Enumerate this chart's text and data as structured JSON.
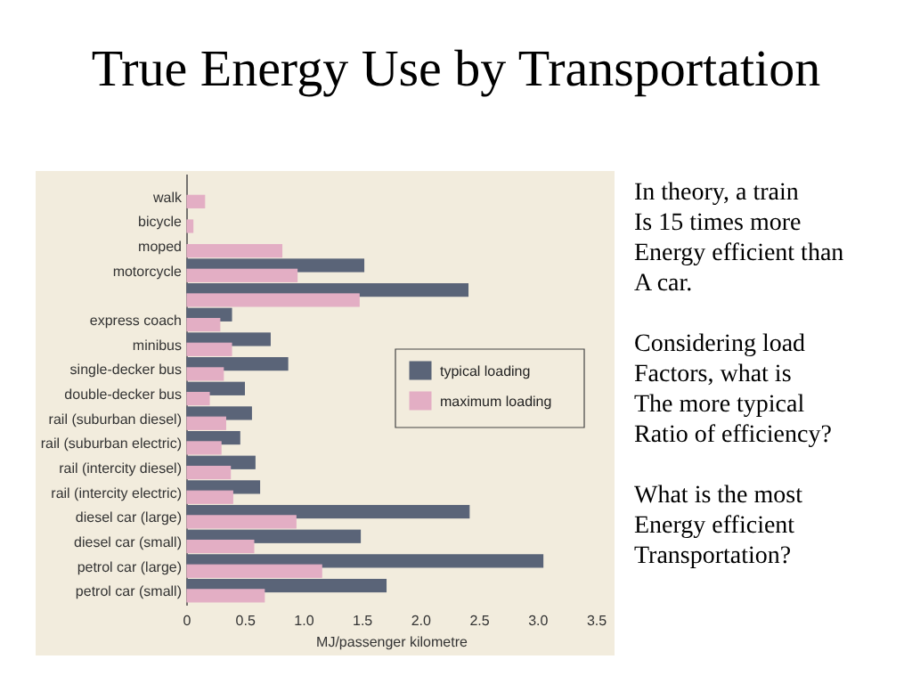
{
  "chart_data": {
    "type": "bar",
    "orientation": "horizontal",
    "title": "True Energy Use by Transportation",
    "xlabel": "MJ/passenger kilometre",
    "categories": [
      "walk",
      "bicycle",
      "moped",
      "motorcycle",
      null,
      "express coach",
      "minibus",
      "single-decker bus",
      "double-decker bus",
      "rail (suburban diesel)",
      "rail (suburban electric)",
      "rail (intercity diesel)",
      "rail (intercity electric)",
      "diesel car (large)",
      "diesel car (small)",
      "petrol car (large)",
      "petrol car (small)"
    ],
    "series": [
      {
        "name": "typical loading",
        "color": "#5a6478",
        "values": [
          null,
          null,
          null,
          1.51,
          2.4,
          0.38,
          0.71,
          0.86,
          0.49,
          0.55,
          0.45,
          0.58,
          0.62,
          2.41,
          1.48,
          3.04,
          1.7
        ]
      },
      {
        "name": "maximum loading",
        "color": "#e3aec4",
        "values": [
          0.15,
          0.05,
          0.81,
          0.94,
          1.47,
          0.28,
          0.38,
          0.31,
          0.19,
          0.33,
          0.29,
          0.37,
          0.39,
          0.93,
          0.57,
          1.15,
          0.66
        ]
      }
    ],
    "xlim": [
      0,
      3.5
    ],
    "xticks": [
      0,
      0.5,
      {
        "value": 1,
        "label": "1.0"
      },
      1.5,
      {
        "value": 2,
        "label": "2.0"
      },
      2.5,
      {
        "value": 3,
        "label": "3.0"
      },
      3.5
    ],
    "legend": "center right",
    "annotations": [
      "In theory, a train\nIs 15 times more\nEnergy efficient than\nA car.",
      "Considering load\nFactors, what is\nThe more typical\nRatio of efficiency?",
      "What is the most\nEnergy efficient\nTransportation?"
    ]
  }
}
